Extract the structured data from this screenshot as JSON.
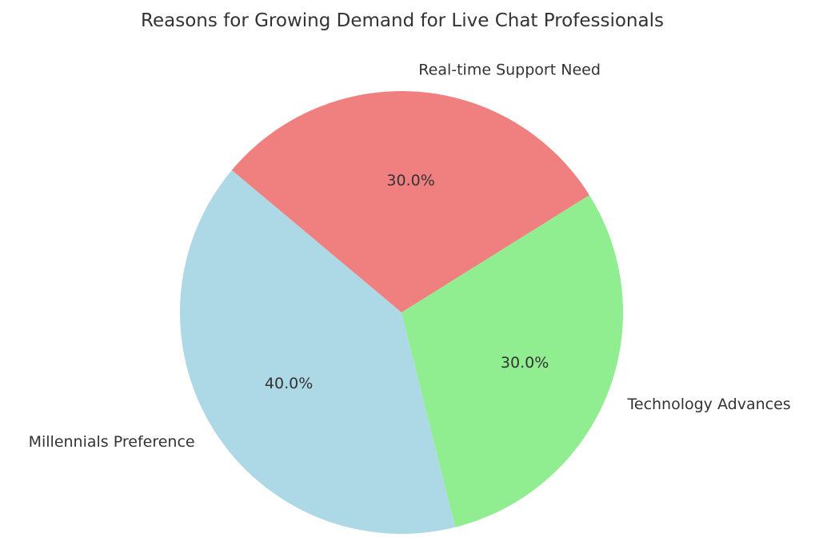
{
  "page": {
    "background": "#ffffff"
  },
  "chart_data": {
    "type": "pie",
    "title": "Reasons for Growing Demand for Live Chat Professionals",
    "slices": [
      {
        "label": "Real-time Support Need",
        "value": 30,
        "pct_label": "30.0%",
        "color": "#F08080"
      },
      {
        "label": "Technology Advances",
        "value": 30,
        "pct_label": "30.0%",
        "color": "#90EE90"
      },
      {
        "label": "Millennials Preference",
        "value": 40,
        "pct_label": "40.0%",
        "color": "#ADD8E6"
      }
    ],
    "start_angle": 140,
    "direction": "clockwise",
    "label_distance": 1.1,
    "pct_distance": 0.6,
    "text_color": "#333333",
    "legend": "none",
    "grid": "off"
  }
}
